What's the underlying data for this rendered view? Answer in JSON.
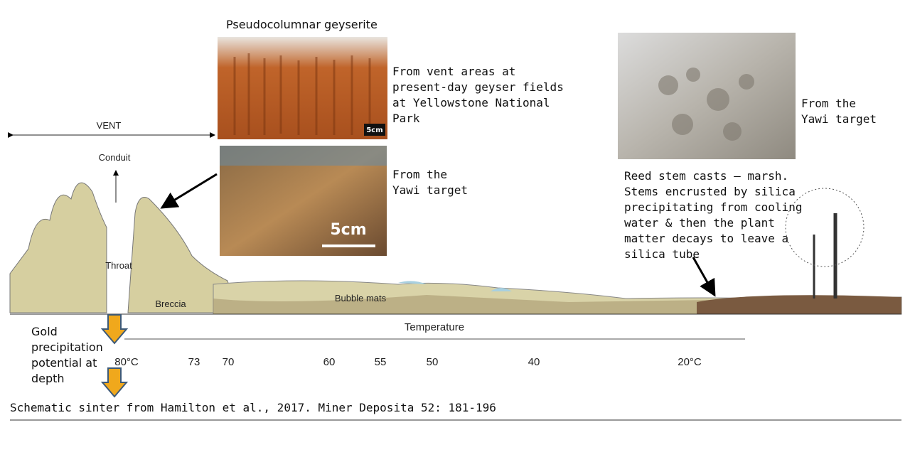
{
  "photos": {
    "geyserite": {
      "caption": "Pseudocolumnar geyserite",
      "scale": "5cm",
      "note": [
        "From vent areas at",
        "present-day geyser fields",
        "at Yellowstone National",
        "Park"
      ]
    },
    "yawi_sample": {
      "scale": "5cm",
      "note": [
        "From the",
        "Yawi target"
      ]
    },
    "reed_sample": {
      "note": [
        "From the",
        "Yawi target"
      ]
    }
  },
  "reed_note": [
    "Reed stem casts – marsh.",
    "Stems encrusted by silica",
    "precipitating from cooling",
    "water & then the plant",
    "matter decays to leave a",
    "silica tube"
  ],
  "gold_note": [
    "Gold",
    "precipitation",
    "potential at",
    "depth"
  ],
  "schematic": {
    "vent": "VENT",
    "conduit": "Conduit",
    "throat": "Throat",
    "breccia": "Breccia",
    "bubble_mats": "Bubble mats",
    "temperature": "Temperature",
    "temperature_ticks": [
      "80°C",
      "73",
      "70",
      "60",
      "55",
      "50",
      "40",
      "20°C"
    ]
  },
  "citation": "Schematic sinter from Hamilton et al., 2017. Miner Deposita 52: 181-196"
}
